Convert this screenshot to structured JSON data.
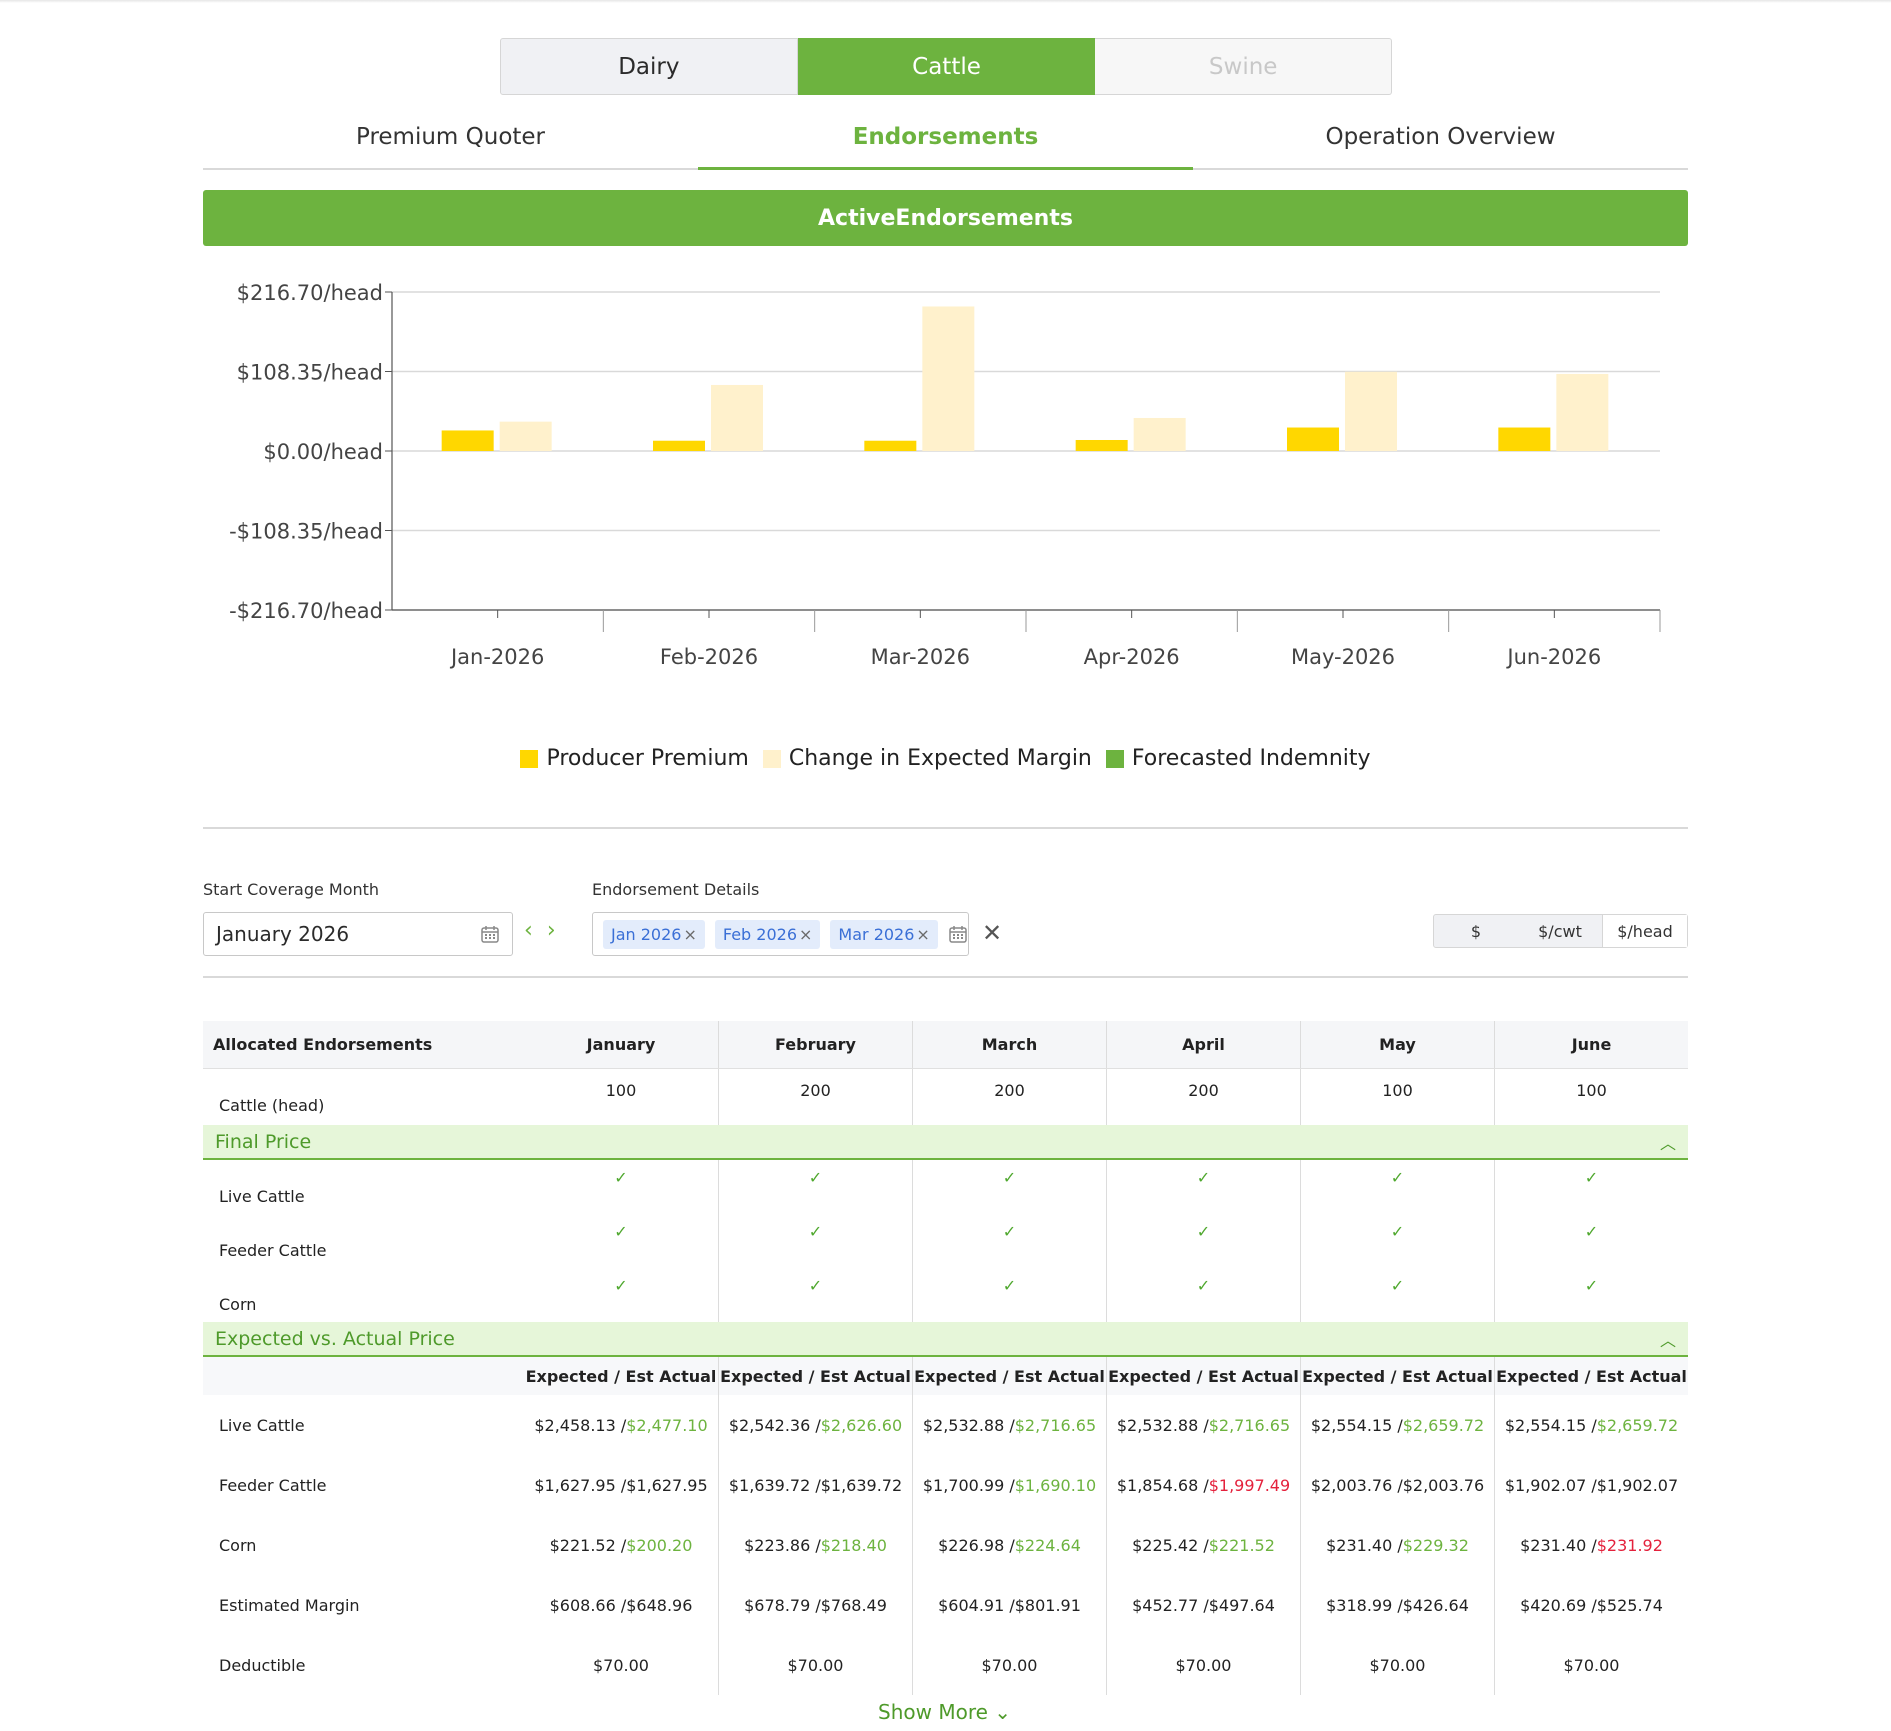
{
  "species": {
    "dairy": "Dairy",
    "cattle": "Cattle",
    "swine": "Swine"
  },
  "tabs": [
    "Premium Quoter",
    "Endorsements",
    "Operation Overview"
  ],
  "banner": "ActiveEndorsements",
  "chart_data": {
    "type": "bar",
    "categories": [
      "Jan-2026",
      "Feb-2026",
      "Mar-2026",
      "Apr-2026",
      "May-2026",
      "Jun-2026"
    ],
    "series": [
      {
        "name": "Producer Premium",
        "color": "#FFD700",
        "values": [
          28,
          14,
          14,
          15,
          32,
          32
        ]
      },
      {
        "name": "Change in Expected Margin",
        "color": "#FFF1CC",
        "values": [
          40,
          90,
          197,
          45,
          108,
          105
        ]
      },
      {
        "name": "Forecasted Indemnity",
        "color": "#6DB33F",
        "values": [
          0,
          0,
          0,
          0,
          0,
          0
        ]
      }
    ],
    "yticks": [
      "$216.70/head",
      "$108.35/head",
      "$0.00/head",
      "-$108.35/head",
      "-$216.70/head"
    ],
    "ylim": [
      -216.7,
      216.7
    ],
    "grid": true,
    "legend": "bottom"
  },
  "controls": {
    "start_label": "Start Coverage Month",
    "start_value": "January 2026",
    "details_label": "Endorsement Details",
    "chips": [
      "Jan 2026",
      "Feb 2026",
      "Mar 2026"
    ],
    "units": [
      "$",
      "$/cwt",
      "$/head"
    ],
    "active_unit": "$/head"
  },
  "table": {
    "header": [
      "Allocated Endorsements",
      "January",
      "February",
      "March",
      "April",
      "May",
      "June"
    ],
    "cattle_row": {
      "label": "Cattle (head)",
      "values": [
        "100",
        "200",
        "200",
        "200",
        "100",
        "100"
      ]
    },
    "final_price": {
      "title": "Final Price",
      "rows": [
        {
          "label": "Live Cattle"
        },
        {
          "label": "Feeder Cattle"
        },
        {
          "label": "Corn"
        }
      ],
      "check": "✓"
    },
    "expected": {
      "title": "Expected vs. Actual Price",
      "subheader": "Expected / Est Actual",
      "rows": [
        {
          "label": "Live Cattle",
          "values": [
            [
              "$2,458.13 /",
              "$2,477.10",
              "green"
            ],
            [
              "$2,542.36 /",
              "$2,626.60",
              "green"
            ],
            [
              "$2,532.88 /",
              "$2,716.65",
              "green"
            ],
            [
              "$2,532.88 /",
              "$2,716.65",
              "green"
            ],
            [
              "$2,554.15 /",
              "$2,659.72",
              "green"
            ],
            [
              "$2,554.15 /",
              "$2,659.72",
              "green"
            ]
          ]
        },
        {
          "label": "Feeder Cattle",
          "values": [
            [
              "$1,627.95 /",
              "$1,627.95",
              ""
            ],
            [
              "$1,639.72 /",
              "$1,639.72",
              ""
            ],
            [
              "$1,700.99 /",
              "$1,690.10",
              "green"
            ],
            [
              "$1,854.68 /",
              "$1,997.49",
              "red"
            ],
            [
              "$2,003.76 /",
              "$2,003.76",
              ""
            ],
            [
              "$1,902.07 /",
              "$1,902.07",
              ""
            ]
          ]
        },
        {
          "label": "Corn",
          "values": [
            [
              "$221.52 /",
              "$200.20",
              "green"
            ],
            [
              "$223.86 /",
              "$218.40",
              "green"
            ],
            [
              "$226.98 /",
              "$224.64",
              "green"
            ],
            [
              "$225.42 /",
              "$221.52",
              "green"
            ],
            [
              "$231.40 /",
              "$229.32",
              "green"
            ],
            [
              "$231.40 /",
              "$231.92",
              "red"
            ]
          ]
        },
        {
          "label": "Estimated Margin",
          "values": [
            [
              "$608.66 /",
              "$648.96",
              ""
            ],
            [
              "$678.79 /",
              "$768.49",
              ""
            ],
            [
              "$604.91 /",
              "$801.91",
              ""
            ],
            [
              "$452.77 /",
              "$497.64",
              ""
            ],
            [
              "$318.99 /",
              "$426.64",
              ""
            ],
            [
              "$420.69 /",
              "$525.74",
              ""
            ]
          ]
        },
        {
          "label": "Deductible",
          "values": [
            [
              "$70.00",
              "",
              ""
            ],
            [
              "$70.00",
              "",
              ""
            ],
            [
              "$70.00",
              "",
              ""
            ],
            [
              "$70.00",
              "",
              ""
            ],
            [
              "$70.00",
              "",
              ""
            ],
            [
              "$70.00",
              "",
              ""
            ]
          ]
        }
      ]
    },
    "show_more": "Show More"
  },
  "colors": {
    "accent": "#6DB33F",
    "accent_light": "#E6F6D9",
    "chip_bg": "#E3ECFB",
    "chip_text": "#3A6FD6",
    "negative": "#E4213C"
  }
}
